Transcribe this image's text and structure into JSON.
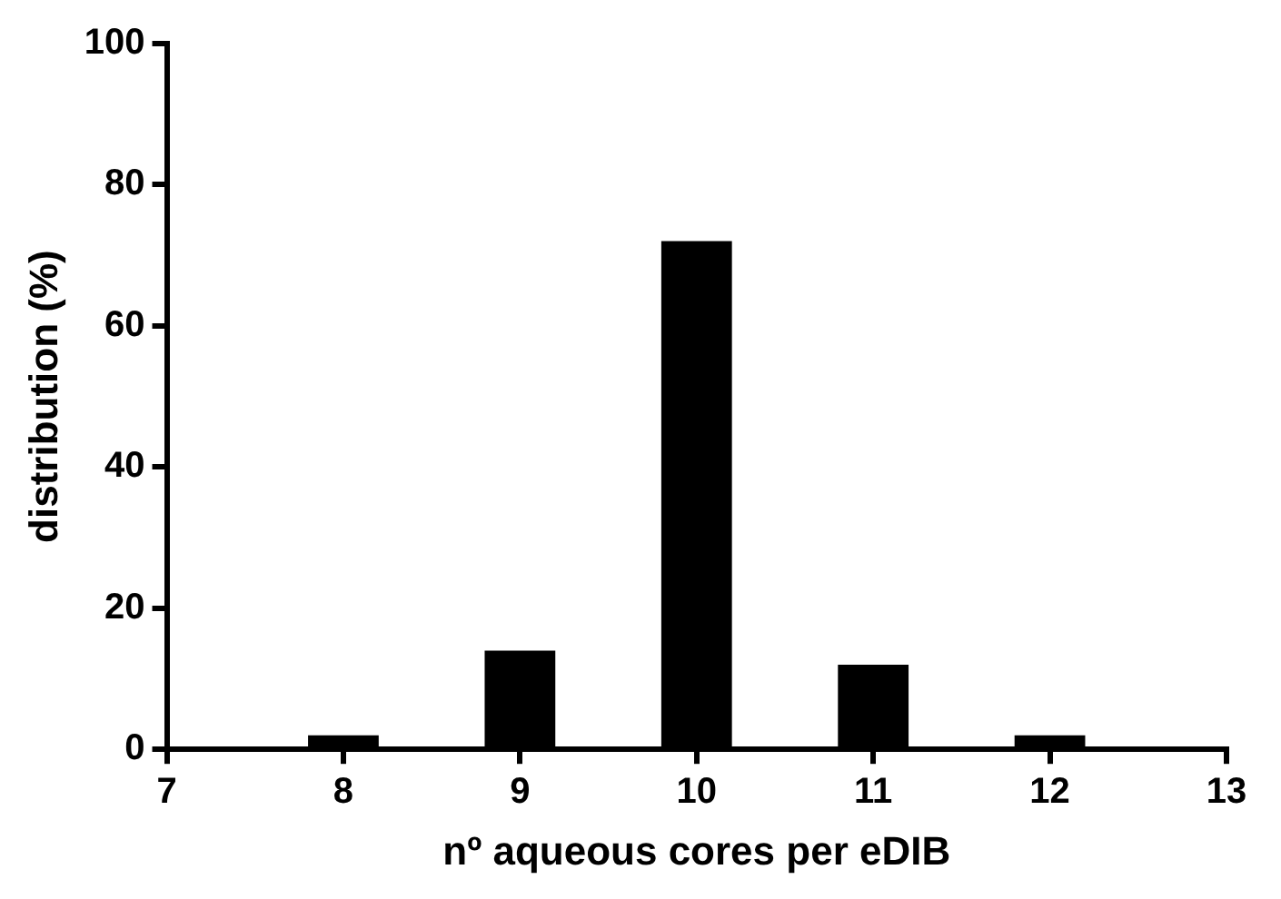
{
  "chart_data": {
    "type": "bar",
    "xlabel": "nº aqueous cores per eDIB",
    "ylabel": "distribution (%)",
    "x": [
      8,
      9,
      10,
      11,
      12
    ],
    "values": [
      2,
      14,
      72,
      12,
      2
    ],
    "color": "#000000",
    "xlim": [
      7,
      13
    ],
    "xticks": [
      7,
      8,
      9,
      10,
      11,
      12,
      13
    ],
    "ylim": [
      0,
      100
    ],
    "yticks": [
      0,
      20,
      40,
      60,
      80,
      100
    ]
  }
}
